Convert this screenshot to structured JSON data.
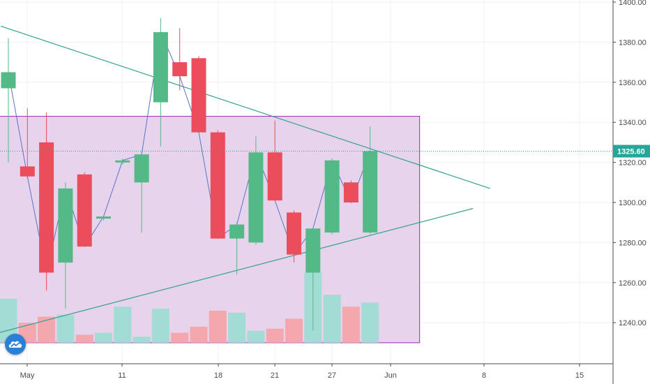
{
  "chart_data": {
    "type": "candlestick",
    "grid": true,
    "y_axis": {
      "position": "right",
      "min": 1220,
      "max": 1402,
      "ticks": [
        "1240.00",
        "1260.00",
        "1280.00",
        "1300.00",
        "1320.00",
        "1340.00",
        "1360.00",
        "1380.00",
        "1400.00"
      ],
      "tick_values": [
        1240,
        1260,
        1280,
        1300,
        1320,
        1340,
        1360,
        1380,
        1400
      ]
    },
    "x_axis": {
      "ticks": [
        "May",
        "11",
        "18",
        "21",
        "27",
        "Jun",
        "8",
        "15"
      ]
    },
    "last_price": {
      "label": "1325.60",
      "value": 1325.6,
      "color": "#26a69a"
    },
    "colors": {
      "up": "#53b987",
      "down": "#eb4d5c",
      "up_volume": "#a2dcd5",
      "down_volume": "#f4a8ae",
      "line": "#5b72c4",
      "trendline": "#35a190",
      "rectangle_fill": "#e8d3ec",
      "rectangle_border": "#9c27b0"
    },
    "candles": [
      {
        "open": 1357,
        "high": 1382,
        "low": 1320,
        "close": 1365,
        "volume": 1252
      },
      {
        "open": 1318,
        "high": 1347,
        "low": 1312,
        "close": 1313,
        "volume": 1240
      },
      {
        "open": 1330,
        "high": 1345,
        "low": 1256,
        "close": 1265,
        "volume": 1243
      },
      {
        "open": 1270,
        "high": 1310,
        "low": 1247,
        "close": 1307,
        "volume": 1244
      },
      {
        "open": 1314,
        "high": 1315,
        "low": 1278,
        "close": 1278,
        "volume": 1234
      },
      {
        "open": 1292,
        "high": 1293,
        "low": 1291,
        "close": 1293,
        "volume": 1235
      },
      {
        "open": 1320,
        "high": 1322,
        "low": 1319,
        "close": 1321,
        "volume": 1248
      },
      {
        "open": 1310,
        "high": 1325,
        "low": 1285,
        "close": 1324,
        "volume": 1233
      },
      {
        "open": 1350,
        "high": 1392,
        "low": 1328,
        "close": 1385,
        "volume": 1247
      },
      {
        "open": 1370,
        "high": 1387,
        "low": 1356,
        "close": 1363,
        "volume": 1235
      },
      {
        "open": 1372,
        "high": 1373,
        "low": 1335,
        "close": 1335,
        "volume": 1238
      },
      {
        "open": 1335,
        "high": 1336,
        "low": 1282,
        "close": 1282,
        "volume": 1246
      },
      {
        "open": 1282,
        "high": 1290,
        "low": 1264,
        "close": 1289,
        "volume": 1245
      },
      {
        "open": 1280,
        "high": 1333,
        "low": 1279,
        "close": 1325,
        "volume": 1236
      },
      {
        "open": 1325,
        "high": 1341,
        "low": 1301,
        "close": 1301,
        "volume": 1237
      },
      {
        "open": 1295,
        "high": 1296,
        "low": 1270,
        "close": 1274,
        "volume": 1242
      },
      {
        "open": 1265,
        "high": 1287,
        "low": 1236,
        "close": 1287,
        "volume": 1265
      },
      {
        "open": 1285,
        "high": 1322,
        "low": 1284,
        "close": 1321,
        "volume": 1254
      },
      {
        "open": 1310,
        "high": 1311,
        "low": 1300,
        "close": 1300,
        "volume": 1248
      },
      {
        "open": 1285,
        "high": 1338,
        "low": 1284,
        "close": 1325.6,
        "volume": 1250
      }
    ],
    "trendlines": [
      {
        "from_index": -0.4,
        "from_value": 1388,
        "to_index": 25.3,
        "to_value": 1307
      },
      {
        "from_index": -0.5,
        "from_value": 1235,
        "to_index": 24.4,
        "to_value": 1297
      }
    ],
    "rectangle": {
      "from_index": -0.5,
      "to_index": 21.6,
      "top": 1343,
      "bottom": 1230
    }
  }
}
